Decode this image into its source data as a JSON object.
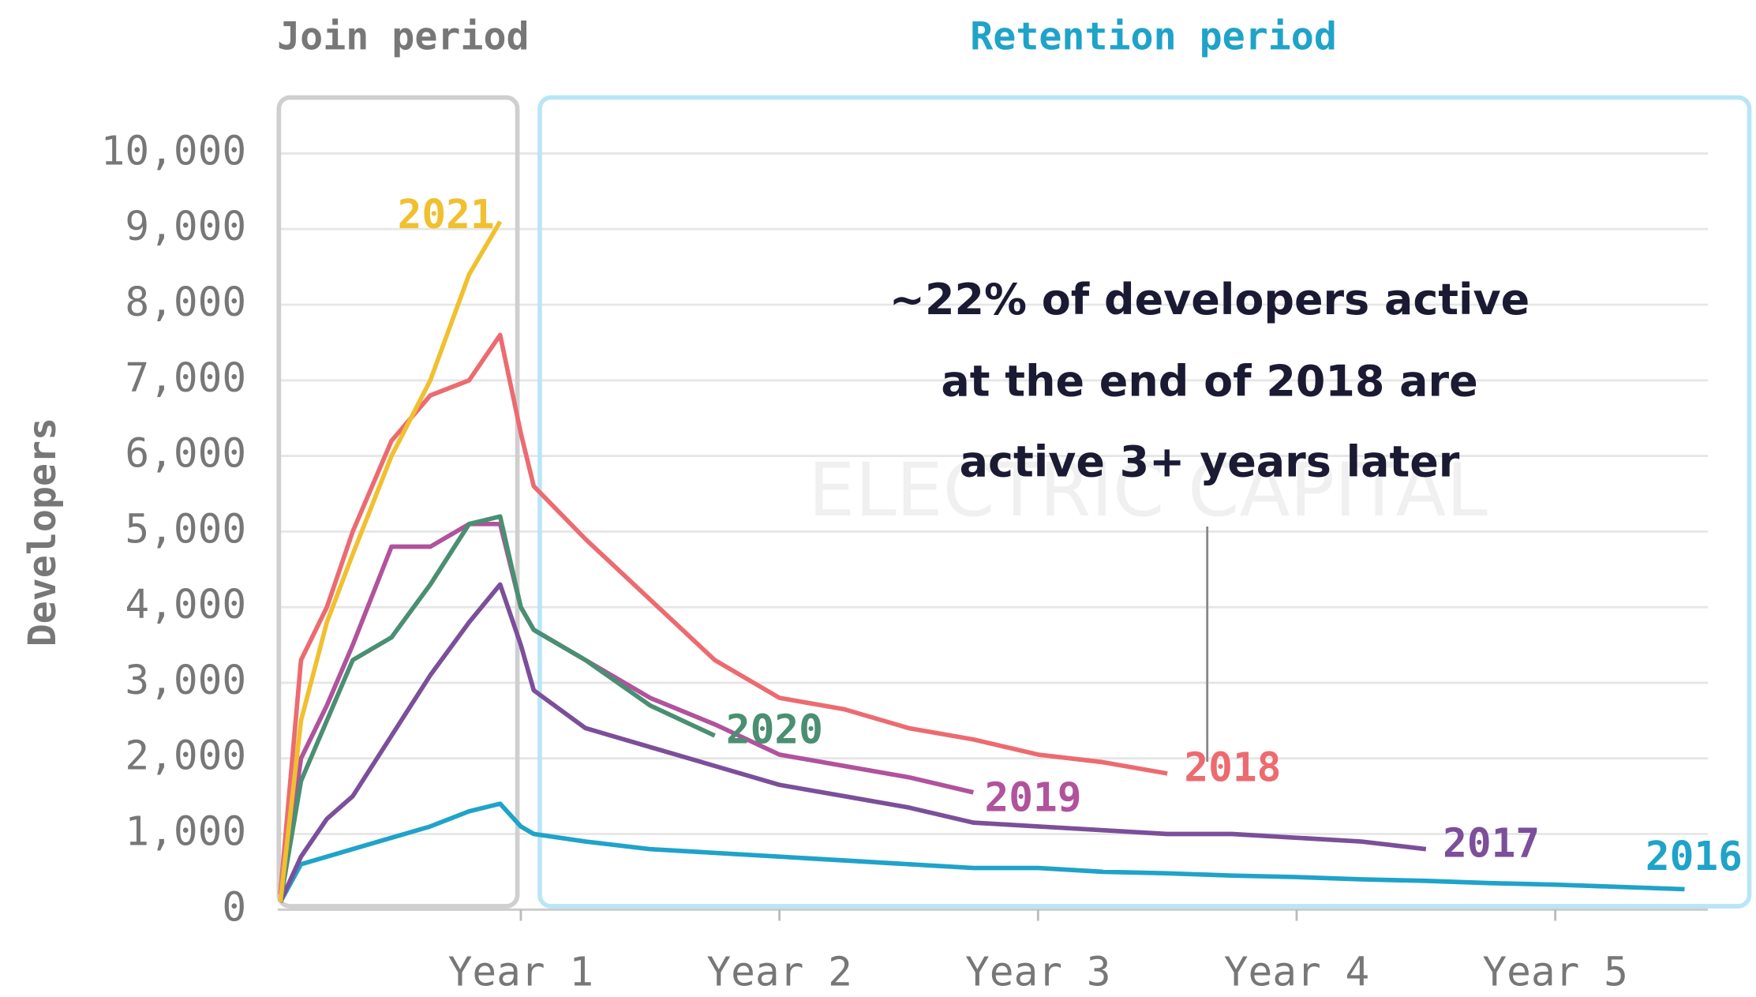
{
  "chart_data": {
    "type": "line",
    "y_label": "Developers",
    "header_left": "Join period",
    "header_right": "Retention period",
    "annotation": [
      "~22% of developers active",
      "at the end of 2018 are",
      "active 3+ years later"
    ],
    "watermark": "ELECTRIC CAPITAL",
    "x": [
      0.07,
      0.15,
      0.25,
      0.35,
      0.5,
      0.65,
      0.8,
      0.92,
      1.0,
      1.05,
      1.25,
      1.5,
      1.75,
      2.0,
      2.25,
      2.5,
      2.75,
      3.0,
      3.25,
      3.5,
      3.75,
      4.0,
      4.25,
      4.5,
      4.75,
      5.0,
      5.25,
      5.5
    ],
    "xlim": [
      0.06,
      5.59
    ],
    "xticks": [
      {
        "value": 1,
        "label": "Year 1"
      },
      {
        "value": 2,
        "label": "Year 2"
      },
      {
        "value": 3,
        "label": "Year 3"
      },
      {
        "value": 4,
        "label": "Year 4"
      },
      {
        "value": 5,
        "label": "Year 5"
      }
    ],
    "ylim": [
      0,
      10000
    ],
    "yticks": [
      0,
      {
        "value": 1000,
        "label": "1,000"
      },
      {
        "value": 2000,
        "label": "2,000"
      },
      {
        "value": 3000,
        "label": "3,000"
      },
      {
        "value": 4000,
        "label": "4,000"
      },
      {
        "value": 5000,
        "label": "5,000"
      },
      {
        "value": 6000,
        "label": "6,000"
      },
      {
        "value": 7000,
        "label": "7,000"
      },
      {
        "value": 8000,
        "label": "8,000"
      },
      {
        "value": 9000,
        "label": "9,000"
      },
      {
        "value": 10000,
        "label": "10,000"
      }
    ],
    "grid": true,
    "series": [
      {
        "name": "2016",
        "color": "#1fa3c9",
        "values": [
          100,
          600,
          700,
          800,
          950,
          1100,
          1300,
          1400,
          1100,
          1000,
          900,
          800,
          750,
          700,
          650,
          600,
          550,
          550,
          500,
          480,
          450,
          430,
          400,
          380,
          350,
          330,
          300,
          270
        ]
      },
      {
        "name": "2017",
        "color": "#7b4f9a",
        "values": [
          100,
          700,
          1200,
          1500,
          2300,
          3100,
          3800,
          4300,
          3500,
          2900,
          2400,
          2150,
          1900,
          1650,
          1500,
          1350,
          1150,
          1100,
          1050,
          1000,
          1000,
          950,
          900,
          800,
          null,
          null,
          null,
          null
        ]
      },
      {
        "name": "2018",
        "color": "#ec6b70",
        "values": [
          200,
          3300,
          4000,
          5000,
          6200,
          6800,
          7000,
          7600,
          6300,
          5600,
          4900,
          4100,
          3300,
          2800,
          2650,
          2400,
          2250,
          2050,
          1950,
          1800,
          null,
          null,
          null,
          null,
          null,
          null,
          null,
          null
        ]
      },
      {
        "name": "2019",
        "color": "#b0539c",
        "values": [
          100,
          2000,
          2700,
          3500,
          4800,
          4800,
          5100,
          5100,
          4000,
          3700,
          3300,
          2800,
          2450,
          2050,
          1900,
          1750,
          1550,
          null,
          null,
          null,
          null,
          null,
          null,
          null,
          null,
          null,
          null,
          null
        ]
      },
      {
        "name": "2020",
        "color": "#4a8f72",
        "values": [
          100,
          1700,
          2500,
          3300,
          3600,
          4300,
          5100,
          5200,
          4000,
          3700,
          3300,
          2700,
          2300,
          null,
          null,
          null,
          null,
          null,
          null,
          null,
          null,
          null,
          null,
          null,
          null,
          null,
          null,
          null
        ]
      },
      {
        "name": "2021",
        "color": "#f0c030",
        "values": [
          100,
          2500,
          3800,
          4700,
          6000,
          7000,
          8400,
          9100,
          null,
          null,
          null,
          null,
          null,
          null,
          null,
          null,
          null,
          null,
          null,
          null,
          null,
          null,
          null,
          null,
          null,
          null,
          null,
          null
        ]
      }
    ]
  }
}
